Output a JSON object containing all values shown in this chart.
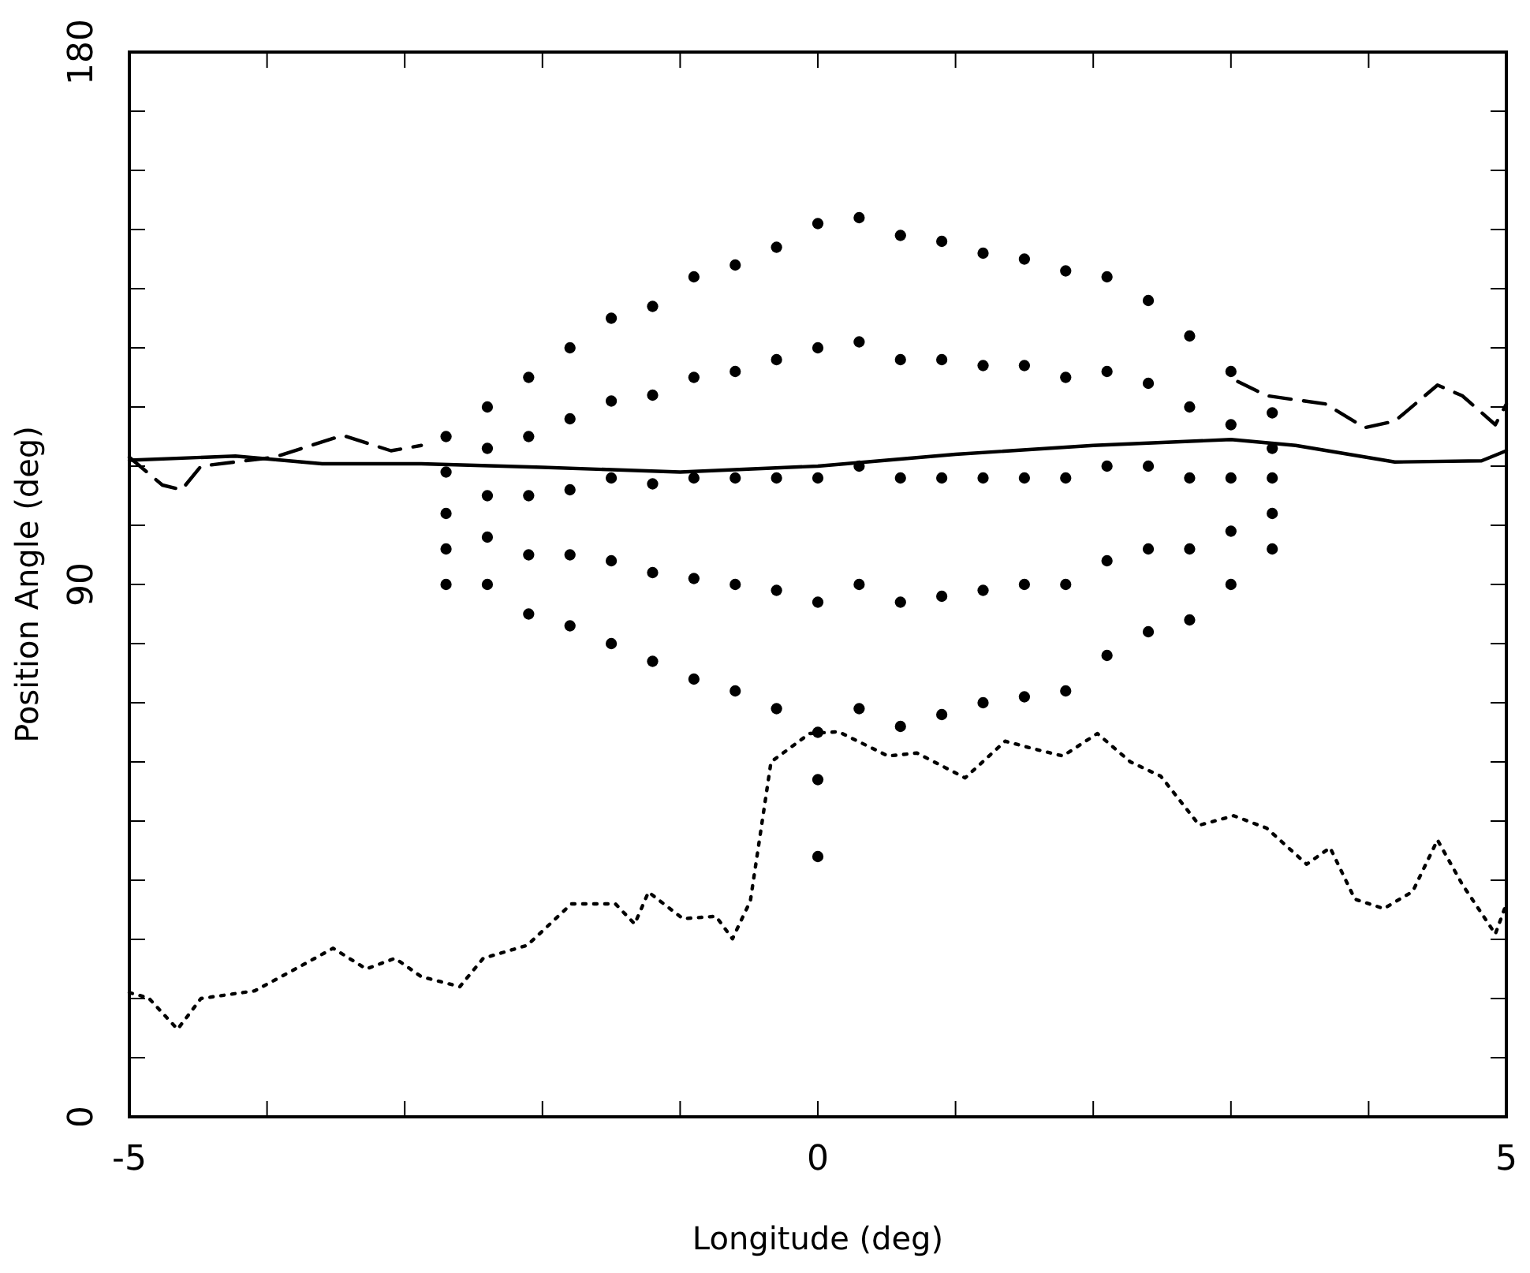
{
  "chart_data": {
    "type": "scatter",
    "xlabel": "Longitude (deg)",
    "ylabel": "Position Angle (deg)",
    "xlim": [
      -5,
      5
    ],
    "ylim": [
      0,
      180
    ],
    "xticks": [
      -5,
      {
        "value": -4,
        "label": null
      },
      {
        "value": -3,
        "label": null
      },
      {
        "value": -2,
        "label": null
      },
      {
        "value": -1,
        "label": null
      },
      0,
      {
        "value": 1,
        "label": null
      },
      {
        "value": 2,
        "label": null
      },
      {
        "value": 3,
        "label": null
      },
      {
        "value": 4,
        "label": null
      },
      5
    ],
    "yticks": [
      0,
      {
        "value": 10,
        "label": null
      },
      {
        "value": 20,
        "label": null
      },
      {
        "value": 30,
        "label": null
      },
      {
        "value": 40,
        "label": null
      },
      {
        "value": 50,
        "label": null
      },
      {
        "value": 60,
        "label": null
      },
      {
        "value": 70,
        "label": null
      },
      {
        "value": 80,
        "label": null
      },
      90,
      {
        "value": 100,
        "label": null
      },
      {
        "value": 110,
        "label": null
      },
      {
        "value": 120,
        "label": null
      },
      {
        "value": 130,
        "label": null
      },
      {
        "value": 140,
        "label": null
      },
      {
        "value": 150,
        "label": null
      },
      {
        "value": 160,
        "label": null
      },
      {
        "value": 170,
        "label": null
      },
      180
    ],
    "grid": false,
    "series": [
      {
        "color": "#000000",
        "marker": "circle",
        "x": [
          -2.7,
          -2.7,
          -2.7,
          -2.7,
          -2.7,
          -2.4,
          -2.4,
          -2.4,
          -2.4,
          -2.4,
          -2.1,
          -2.1,
          -2.1,
          -2.1,
          -2.1,
          -1.8,
          -1.8,
          -1.8,
          -1.8,
          -1.8,
          -1.5,
          -1.5,
          -1.5,
          -1.5,
          -1.5,
          -1.2,
          -1.2,
          -1.2,
          -1.2,
          -1.2,
          -0.9,
          -0.9,
          -0.9,
          -0.9,
          -0.9,
          -0.6,
          -0.6,
          -0.6,
          -0.6,
          -0.6,
          -0.3,
          -0.3,
          -0.3,
          -0.3,
          -0.3,
          0,
          0,
          0,
          0,
          0,
          0.3,
          0.3,
          0.3,
          0.3,
          0.3,
          0.6,
          0.6,
          0.6,
          0.6,
          0.6,
          0.9,
          0.9,
          0.9,
          0.9,
          0.9,
          1.2,
          1.2,
          1.2,
          1.2,
          1.2,
          1.5,
          1.5,
          1.5,
          1.5,
          1.5,
          1.8,
          1.8,
          1.8,
          1.8,
          1.8,
          2.1,
          2.1,
          2.1,
          2.1,
          2.1,
          2.4,
          2.4,
          2.4,
          2.4,
          2.4,
          2.7,
          2.7,
          2.7,
          2.7,
          2.7,
          3.0,
          3.0,
          3.0,
          3.0,
          3.0,
          3.3,
          3.3,
          3.3,
          3.3,
          3.3,
          0,
          0
        ],
        "values": [
          90,
          96,
          102,
          109,
          115,
          90,
          98,
          105,
          113,
          120,
          85,
          95,
          105,
          115,
          125,
          83,
          95,
          106,
          118,
          130,
          80,
          94,
          108,
          121,
          135,
          77,
          92,
          107,
          122,
          137,
          74,
          91,
          108,
          125,
          142,
          72,
          90,
          108,
          126,
          144,
          69,
          89,
          108,
          128,
          147,
          65,
          87,
          108,
          130,
          151,
          69,
          90,
          110,
          131,
          152,
          66,
          87,
          108,
          128,
          149,
          68,
          88,
          108,
          128,
          148,
          70,
          89,
          108,
          127,
          146,
          71,
          90,
          108,
          127,
          145,
          72,
          90,
          108,
          125,
          143,
          78,
          94,
          110,
          126,
          142,
          82,
          96,
          110,
          124,
          138,
          84,
          96,
          108,
          120,
          132,
          90,
          99,
          108,
          117,
          126,
          96,
          102,
          108,
          113,
          119,
          57,
          44
        ]
      },
      {
        "type": "line",
        "color": "#000000",
        "line_style": "solid",
        "x": [
          -5,
          -4.23,
          -3.6,
          -2.88,
          -2,
          -1,
          0,
          1,
          2,
          3,
          3.47,
          4.19,
          4.82,
          5
        ],
        "values": [
          111,
          111.7,
          110.4,
          110.4,
          109.8,
          109,
          110,
          112,
          113.5,
          114.5,
          113.5,
          110.7,
          110.9,
          112.6
        ]
      },
      {
        "type": "line",
        "color": "#000000",
        "line_style": "dashed",
        "x": [
          -5,
          -4.76,
          -4.62,
          -4.48,
          -3.95,
          -3.45,
          -3.1,
          -2.88,
          0,
          3.05,
          3.26,
          3.69,
          3.97,
          4.19,
          4.5,
          4.68,
          4.92,
          5
        ],
        "values": [
          111.5,
          106.8,
          106,
          110,
          111.5,
          115.2,
          112.6,
          113.5,
          null,
          124.3,
          121.9,
          120.5,
          116.5,
          117.6,
          123.7,
          121.9,
          117,
          120.5
        ]
      },
      {
        "type": "line",
        "color": "#000000",
        "line_style": "dotted",
        "x": [
          -5,
          -4.86,
          -4.65,
          -4.48,
          -4.09,
          -3.81,
          -3.52,
          -3.28,
          -3.07,
          -2.88,
          -2.6,
          -2.43,
          -2.11,
          -1.79,
          -1.47,
          -1.33,
          -1.23,
          -0.98,
          -0.74,
          -0.62,
          -0.49,
          -0.34,
          -0.06,
          0.15,
          0.51,
          0.72,
          1.07,
          1.36,
          1.57,
          1.78,
          2.03,
          2.27,
          2.49,
          2.77,
          3.02,
          3.26,
          3.55,
          3.72,
          3.9,
          4.11,
          4.32,
          4.5,
          4.68,
          4.92,
          5
        ],
        "values": [
          21,
          20.1,
          14.8,
          20,
          21.3,
          24.8,
          28.5,
          25,
          26.8,
          23.7,
          22,
          26.8,
          29,
          36,
          36,
          32.6,
          38,
          33.5,
          33.9,
          30.1,
          36.5,
          60,
          64.8,
          65.1,
          61,
          61.5,
          57.3,
          63.5,
          62.2,
          61,
          64.8,
          60,
          57.6,
          49.3,
          50.9,
          48.8,
          42.7,
          45.5,
          36.8,
          35.2,
          38.1,
          46.8,
          39.3,
          30.9,
          36
        ]
      }
    ]
  }
}
